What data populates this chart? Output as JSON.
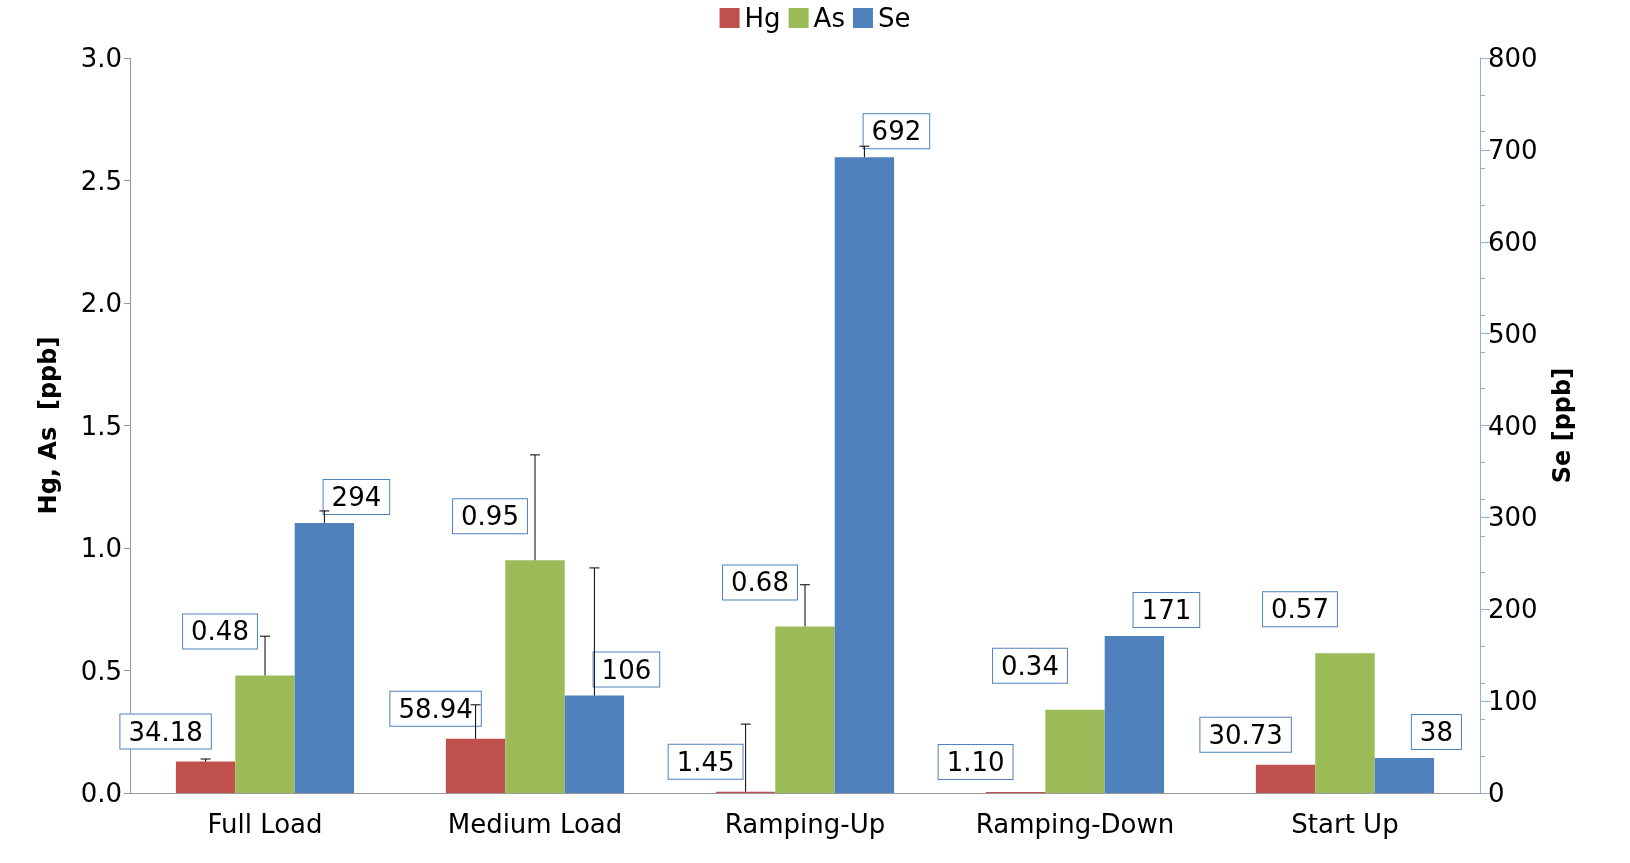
{
  "chart_data": {
    "type": "bar",
    "categories": [
      "Full Load",
      "Medium Load",
      "Ramping-Up",
      "Ramping-Down",
      "Start Up"
    ],
    "ylabel": "Hg, As  [ppb]",
    "y2label": "Se [ppb]",
    "ylim": [
      0,
      3
    ],
    "yticks": [
      {
        "value": 0,
        "label": "0.0"
      },
      {
        "value": 0.5,
        "label": "0.5"
      },
      {
        "value": 1,
        "label": "1.0"
      },
      {
        "value": 1.5,
        "label": "1.5"
      },
      {
        "value": 2,
        "label": "2.0"
      },
      {
        "value": 2.5,
        "label": "2.5"
      },
      {
        "value": 3,
        "label": "3.0"
      }
    ],
    "y2lim": [
      0,
      800
    ],
    "y2ticks": [
      0,
      100,
      200,
      300,
      400,
      500,
      600,
      700,
      800
    ],
    "legend": "top",
    "grid": false,
    "series": [
      {
        "name": "Hg",
        "color": "#c0504d",
        "axis": "y2",
        "values": [
          34.18,
          58.94,
          1.45,
          1.1,
          30.73
        ],
        "errors": [
          [
            34.18,
            37
          ],
          [
            58.94,
            96
          ],
          [
            1.45,
            75
          ],
          null,
          null
        ],
        "value_labels": [
          "34.18",
          "58.94",
          "1.45",
          "1.10",
          "30.73"
        ]
      },
      {
        "name": "As",
        "color": "#9bbb59",
        "values": [
          0.48,
          0.95,
          0.68,
          0.34,
          0.57
        ],
        "errors": [
          [
            0.48,
            0.64
          ],
          [
            0.95,
            1.38
          ],
          [
            0.68,
            0.85
          ],
          null,
          null
        ],
        "value_labels": [
          "0.48",
          "0.95",
          "0.68",
          "0.34",
          "0.57"
        ]
      },
      {
        "name": "Se",
        "color": "#4f81bd",
        "axis": "y2",
        "values": [
          294,
          106,
          692,
          171,
          38
        ],
        "errors": [
          [
            294,
            307
          ],
          [
            106,
            245
          ],
          [
            692,
            704
          ],
          null,
          null
        ],
        "value_labels": [
          "294",
          "106",
          "692",
          "171",
          "38"
        ]
      }
    ]
  }
}
